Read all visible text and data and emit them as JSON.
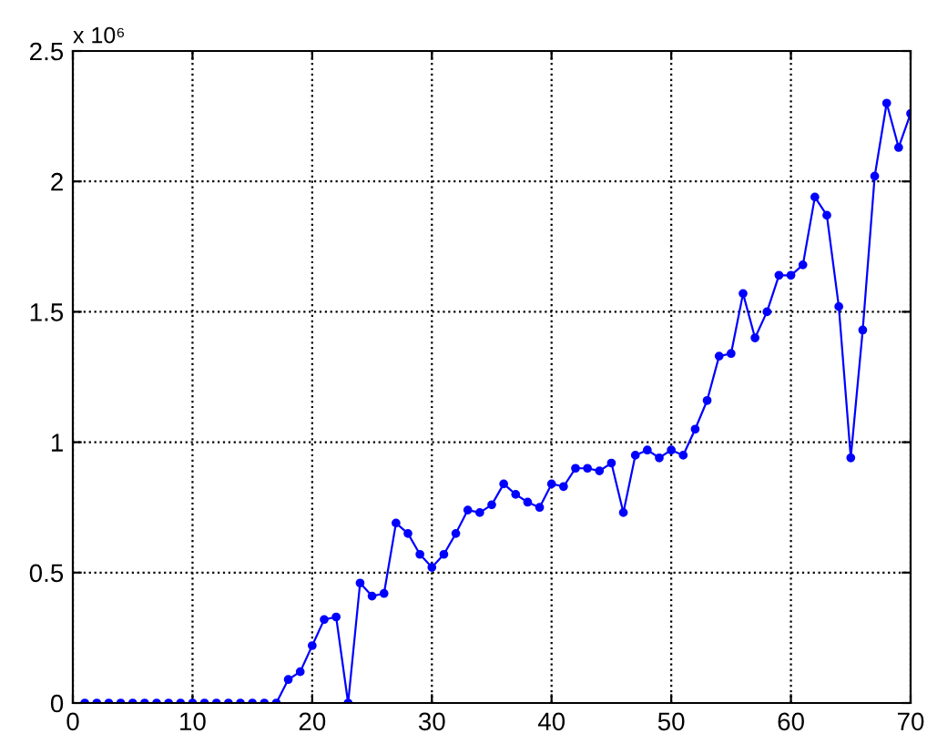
{
  "chart_data": {
    "type": "line",
    "x": [
      1,
      2,
      3,
      4,
      5,
      6,
      7,
      8,
      9,
      10,
      11,
      12,
      13,
      14,
      15,
      16,
      17,
      18,
      19,
      20,
      21,
      22,
      23,
      24,
      25,
      26,
      27,
      28,
      29,
      30,
      31,
      32,
      33,
      34,
      35,
      36,
      37,
      38,
      39,
      40,
      41,
      42,
      43,
      44,
      45,
      46,
      47,
      48,
      49,
      50,
      51,
      52,
      53,
      54,
      55,
      56,
      57,
      58,
      59,
      60,
      61,
      62,
      63,
      64,
      65,
      66,
      67,
      68,
      69,
      70
    ],
    "series": [
      {
        "color": "#0000ff",
        "values": [
          0,
          0,
          0,
          0,
          0,
          0,
          0,
          0,
          0,
          0,
          0,
          0,
          0,
          0,
          0,
          0,
          0,
          0.09,
          0.12,
          0.22,
          0.32,
          0.33,
          0,
          0.46,
          0.41,
          0.42,
          0.69,
          0.65,
          0.57,
          0.52,
          0.57,
          0.65,
          0.74,
          0.73,
          0.76,
          0.84,
          0.8,
          0.77,
          0.75,
          0.84,
          0.83,
          0.9,
          0.9,
          0.89,
          0.92,
          0.73,
          0.95,
          0.97,
          0.94,
          0.97,
          0.95,
          1.05,
          1.16,
          1.33,
          1.34,
          1.57,
          1.4,
          1.5,
          1.64,
          1.64,
          1.68,
          1.94,
          1.87,
          1.52,
          0.94,
          1.43,
          2.02,
          2.3,
          2.13,
          2.26
        ]
      }
    ],
    "xlim": [
      0,
      70
    ],
    "xticks": [
      0,
      10,
      20,
      30,
      40,
      50,
      60,
      70
    ],
    "ylim": [
      0,
      2.5
    ],
    "yticks": [
      0,
      0.5,
      1,
      1.5,
      2,
      2.5
    ],
    "annotations": [
      "x 10⁶"
    ],
    "grid": true,
    "marker": "circle",
    "line_style": "solid"
  }
}
